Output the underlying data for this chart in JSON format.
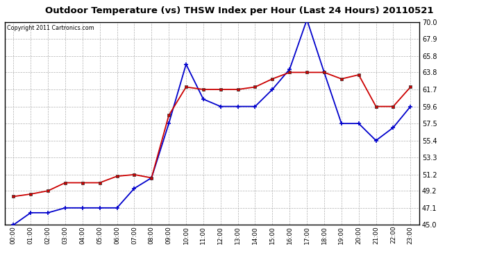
{
  "title": "Outdoor Temperature (vs) THSW Index per Hour (Last 24 Hours) 20110521",
  "copyright": "Copyright 2011 Cartronics.com",
  "hours": [
    "00:00",
    "01:00",
    "02:00",
    "03:00",
    "04:00",
    "05:00",
    "06:00",
    "07:00",
    "08:00",
    "09:00",
    "10:00",
    "11:00",
    "12:00",
    "13:00",
    "14:00",
    "15:00",
    "16:00",
    "17:00",
    "18:00",
    "19:00",
    "20:00",
    "21:00",
    "22:00",
    "23:00"
  ],
  "temp": [
    48.5,
    48.8,
    49.2,
    50.2,
    50.2,
    50.2,
    51.0,
    51.2,
    50.8,
    58.5,
    62.0,
    61.7,
    61.7,
    61.7,
    62.0,
    63.0,
    63.8,
    63.8,
    63.8,
    63.0,
    63.5,
    59.6,
    59.6,
    62.0
  ],
  "thsw": [
    45.0,
    46.5,
    46.5,
    47.1,
    47.1,
    47.1,
    47.1,
    49.5,
    50.8,
    57.5,
    64.8,
    60.5,
    59.6,
    59.6,
    59.6,
    61.7,
    64.2,
    70.3,
    63.8,
    57.5,
    57.5,
    55.4,
    57.0,
    59.6
  ],
  "temp_color": "#cc0000",
  "thsw_color": "#0000cc",
  "bg_color": "#ffffff",
  "plot_bg_color": "#ffffff",
  "grid_color": "#b0b0b0",
  "ylim_min": 45.0,
  "ylim_max": 70.0,
  "yticks": [
    45.0,
    47.1,
    49.2,
    51.2,
    53.3,
    55.4,
    57.5,
    59.6,
    61.7,
    63.8,
    65.8,
    67.9,
    70.0
  ]
}
